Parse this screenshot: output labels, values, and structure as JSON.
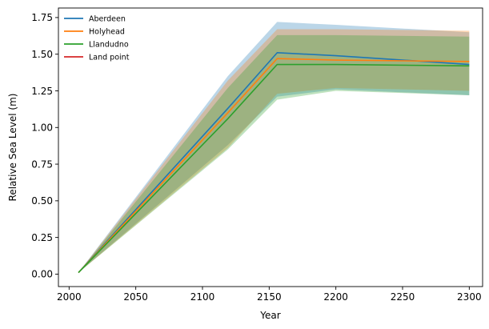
{
  "chart_data": {
    "type": "line",
    "title": "",
    "xlabel": "Year",
    "ylabel": "Relative Sea Level (m)",
    "xlim": [
      1992,
      2310
    ],
    "ylim": [
      -0.085,
      1.815
    ],
    "xticks": [
      2000,
      2050,
      2100,
      2150,
      2200,
      2250,
      2300
    ],
    "yticks": [
      0.0,
      0.25,
      0.5,
      0.75,
      1.0,
      1.25,
      1.5,
      1.75
    ],
    "ytick_labels": [
      "0.00",
      "0.25",
      "0.50",
      "0.75",
      "1.00",
      "1.25",
      "1.50",
      "1.75"
    ],
    "grid": false,
    "legend_position": "upper-left",
    "series": [
      {
        "name": "Aberdeen",
        "color": "#1f77b4",
        "band_opacity": 0.3,
        "x": [
          2007,
          2119,
          2156,
          2200,
          2300
        ],
        "values": [
          0.01,
          1.13,
          1.51,
          1.49,
          1.43
        ],
        "lower": [
          0.01,
          0.88,
          1.21,
          1.26,
          1.22
        ],
        "upper": [
          0.01,
          1.35,
          1.72,
          1.7,
          1.65
        ]
      },
      {
        "name": "Holyhead",
        "color": "#ff7f0e",
        "band_opacity": 0.3,
        "x": [
          2007,
          2119,
          2156,
          2200,
          2300
        ],
        "values": [
          0.01,
          1.1,
          1.47,
          1.46,
          1.45
        ],
        "lower": [
          0.01,
          0.86,
          1.23,
          1.27,
          1.25
        ],
        "upper": [
          0.01,
          1.32,
          1.67,
          1.67,
          1.66
        ]
      },
      {
        "name": "Llandudno",
        "color": "#2ca02c",
        "band_opacity": 0.3,
        "x": [
          2007,
          2119,
          2156,
          2200,
          2300
        ],
        "values": [
          0.01,
          1.06,
          1.43,
          1.43,
          1.42
        ],
        "lower": [
          0.01,
          0.85,
          1.19,
          1.25,
          1.22
        ],
        "upper": [
          0.01,
          1.27,
          1.63,
          1.63,
          1.62
        ]
      },
      {
        "name": "Land point",
        "color": "#d62728",
        "band_opacity": 0.3,
        "x": [],
        "values": [],
        "lower": [],
        "upper": []
      }
    ]
  }
}
